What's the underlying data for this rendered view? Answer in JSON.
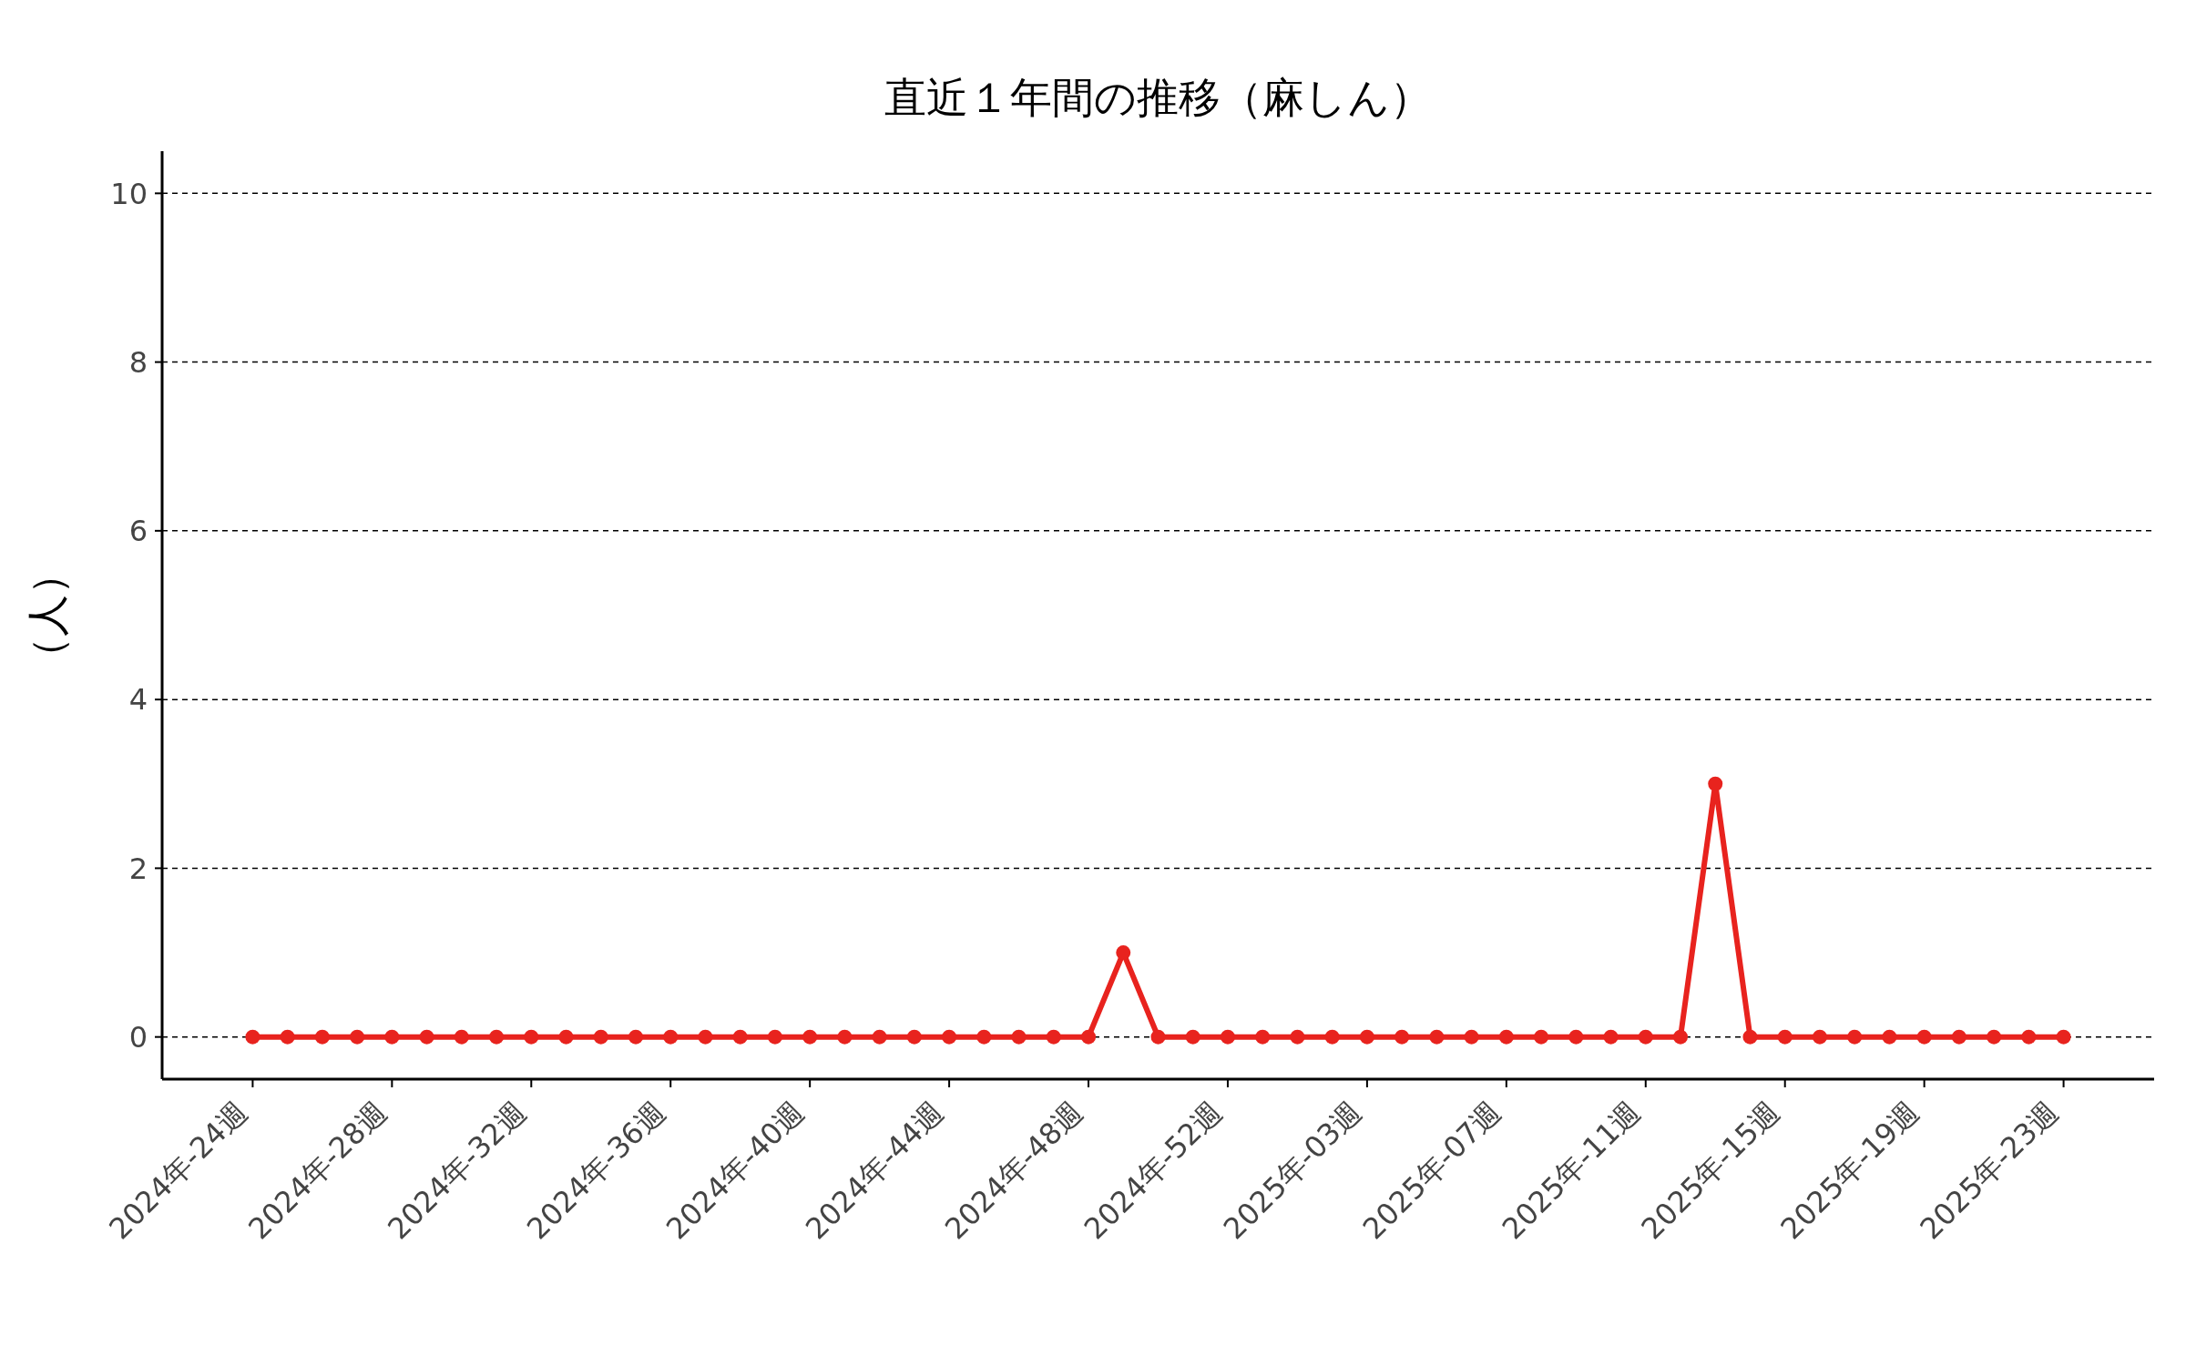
{
  "chart_data": {
    "type": "line",
    "title": "直近１年間の推移（麻しん）",
    "ylabel": "（人）",
    "categories": [
      "2024年-24週",
      null,
      null,
      null,
      "2024年-28週",
      null,
      null,
      null,
      "2024年-32週",
      null,
      null,
      null,
      "2024年-36週",
      null,
      null,
      null,
      "2024年-40週",
      null,
      null,
      null,
      "2024年-44週",
      null,
      null,
      null,
      "2024年-48週",
      null,
      null,
      null,
      "2024年-52週",
      null,
      null,
      null,
      "2025年-03週",
      null,
      null,
      null,
      "2025年-07週",
      null,
      null,
      null,
      "2025年-11週",
      null,
      null,
      null,
      "2025年-15週",
      null,
      null,
      null,
      "2025年-19週",
      null,
      null,
      null,
      "2025年-23週"
    ],
    "series": [
      {
        "color": "#e8231e",
        "values": [
          0,
          0,
          0,
          0,
          0,
          0,
          0,
          0,
          0,
          0,
          0,
          0,
          0,
          0,
          0,
          0,
          0,
          0,
          0,
          0,
          0,
          0,
          0,
          0,
          0,
          1,
          0,
          0,
          0,
          0,
          0,
          0,
          0,
          0,
          0,
          0,
          0,
          0,
          0,
          0,
          0,
          0,
          3,
          0,
          0,
          0,
          0,
          0,
          0,
          0,
          0,
          0,
          0
        ]
      }
    ],
    "ylim": [
      -0.5,
      10.5
    ],
    "yticks": [
      0,
      2,
      4,
      6,
      8,
      10
    ],
    "grid": "y",
    "marker": "circle",
    "line_style": "solid"
  }
}
